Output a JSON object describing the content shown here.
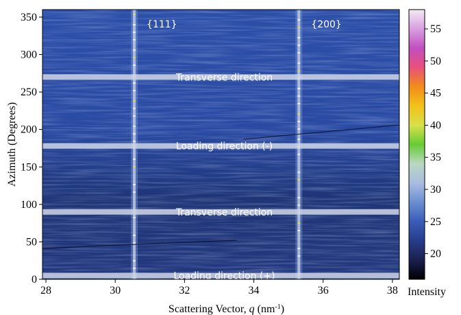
{
  "chart_data": {
    "type": "heatmap",
    "xlabel": "Scattering Vector, q (nm-1)",
    "xlabel_parts": {
      "main": "Scattering Vector, ",
      "var": "q",
      "unit_open": " (nm",
      "sup": "-1",
      "unit_close": ")"
    },
    "ylabel": "Azimuth (Degrees)",
    "colorbar_label": "Intensity",
    "xlim": [
      27.9,
      38.2
    ],
    "ylim": [
      0,
      360
    ],
    "clim": [
      16,
      58
    ],
    "x_ticks": [
      "28",
      "30",
      "32",
      "34",
      "36",
      "38"
    ],
    "y_ticks": [
      "0",
      "50",
      "100",
      "150",
      "200",
      "250",
      "300",
      "350"
    ],
    "colorbar_ticks": [
      "20",
      "25",
      "30",
      "35",
      "40",
      "45",
      "50",
      "55"
    ],
    "colormap": [
      "#000000",
      "#1a1f4e",
      "#263d8a",
      "#3a5cb8",
      "#6a8fd0",
      "#a9bde0",
      "#b8d8c0",
      "#66cc33",
      "#d8e04a",
      "#f2c21a",
      "#f28c1a",
      "#e8507a",
      "#c04fc0",
      "#d8a0e0",
      "#f4eaf4"
    ],
    "peaks": [
      {
        "label": "{111}",
        "q": 30.55
      },
      {
        "label": "{200}",
        "q": 35.3
      }
    ],
    "directions": [
      {
        "label": "Transverse direction",
        "azimuth": 270
      },
      {
        "label": "Loading direction (-)",
        "azimuth": 178
      },
      {
        "label": "Transverse direction",
        "azimuth": 90
      },
      {
        "label": "Loading direction (+)",
        "azimuth": 5
      }
    ]
  }
}
